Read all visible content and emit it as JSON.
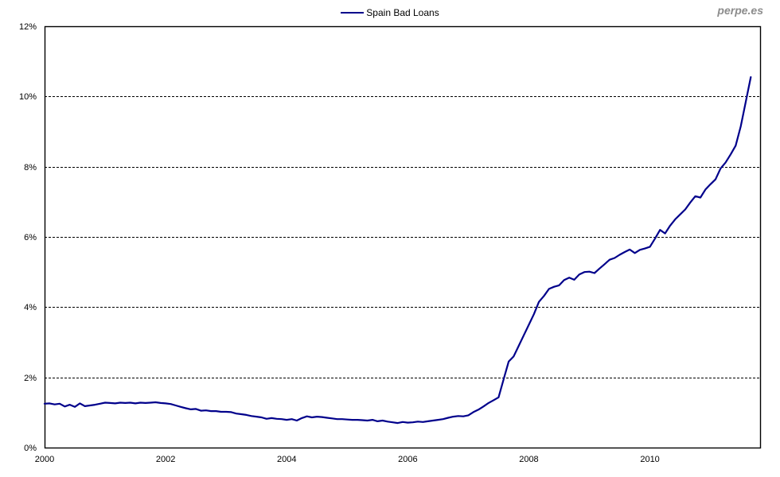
{
  "watermark": "perpe.es",
  "legend": {
    "label": "Spain Bad Loans"
  },
  "chart_data": {
    "type": "line",
    "title": "Spain Bad Loans",
    "xlabel": "",
    "ylabel": "",
    "unit": "percent",
    "frequency": "monthly",
    "start": "2000-01",
    "end": "2011-09",
    "xlim": [
      2000,
      2011.82
    ],
    "ylim": [
      0,
      12
    ],
    "x_ticks": [
      2000,
      2002,
      2004,
      2006,
      2008,
      2010
    ],
    "y_ticks": [
      0,
      2,
      4,
      6,
      8,
      10,
      12
    ],
    "y_tick_suffix": "%",
    "grid": {
      "horizontal": true,
      "style": "dashed"
    },
    "legend_position": "top-center",
    "series": [
      {
        "name": "Spain Bad Loans",
        "color": "#00008B",
        "x_start_year": 2000,
        "x_step_months": 1,
        "values": [
          1.25,
          1.26,
          1.23,
          1.25,
          1.17,
          1.22,
          1.16,
          1.26,
          1.18,
          1.2,
          1.22,
          1.25,
          1.28,
          1.27,
          1.26,
          1.28,
          1.27,
          1.28,
          1.26,
          1.28,
          1.27,
          1.28,
          1.29,
          1.27,
          1.26,
          1.24,
          1.2,
          1.16,
          1.12,
          1.09,
          1.1,
          1.05,
          1.06,
          1.04,
          1.04,
          1.02,
          1.02,
          1.01,
          0.97,
          0.95,
          0.93,
          0.9,
          0.88,
          0.86,
          0.82,
          0.84,
          0.82,
          0.81,
          0.79,
          0.81,
          0.77,
          0.84,
          0.89,
          0.86,
          0.88,
          0.87,
          0.85,
          0.83,
          0.81,
          0.81,
          0.8,
          0.79,
          0.79,
          0.78,
          0.77,
          0.79,
          0.75,
          0.77,
          0.74,
          0.72,
          0.7,
          0.73,
          0.71,
          0.72,
          0.74,
          0.73,
          0.75,
          0.77,
          0.79,
          0.81,
          0.85,
          0.88,
          0.9,
          0.89,
          0.92,
          1.01,
          1.08,
          1.17,
          1.27,
          1.35,
          1.43,
          1.95,
          2.45,
          2.6,
          2.9,
          3.2,
          3.5,
          3.8,
          4.15,
          4.32,
          4.52,
          4.58,
          4.62,
          4.77,
          4.84,
          4.78,
          4.93,
          5.0,
          5.01,
          4.97,
          5.1,
          5.22,
          5.35,
          5.4,
          5.49,
          5.57,
          5.64,
          5.54,
          5.63,
          5.67,
          5.72,
          5.95,
          6.2,
          6.1,
          6.32,
          6.5,
          6.64,
          6.78,
          6.98,
          7.16,
          7.12,
          7.35,
          7.5,
          7.64,
          7.95,
          8.12,
          8.35,
          8.6,
          9.15,
          9.85,
          10.55
        ]
      }
    ]
  }
}
